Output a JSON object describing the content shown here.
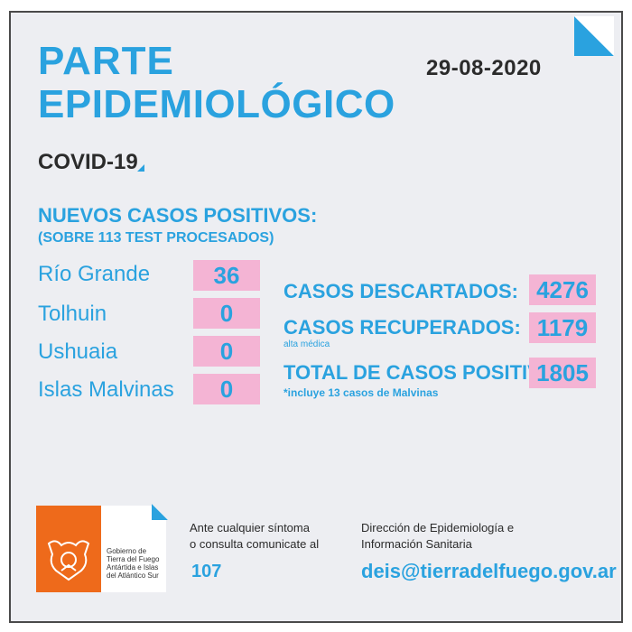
{
  "header": {
    "title_line1": "PARTE",
    "title_line2": "EPIDEMIOLÓGICO",
    "subtitle": "COVID-19",
    "date": "29-08-2020"
  },
  "new_cases": {
    "heading": "NUEVOS CASOS POSITIVOS:",
    "subheading": "(SOBRE 113 TEST PROCESADOS)",
    "cities": [
      {
        "name": "Río Grande",
        "value": "36"
      },
      {
        "name": "Tolhuin",
        "value": "0"
      },
      {
        "name": "Ushuaia",
        "value": "0"
      },
      {
        "name": "Islas Malvinas",
        "value": "0"
      }
    ]
  },
  "totals": {
    "discarded_label": "CASOS DESCARTADOS:",
    "discarded_value": "4276",
    "recovered_label": "CASOS RECUPERADOS:",
    "recovered_note": "alta médica",
    "recovered_value": "1179",
    "positive_label": "TOTAL DE CASOS POSITIVOS",
    "positive_note": "*incluye 13 casos de Malvinas",
    "positive_value": "1805"
  },
  "footer": {
    "logo_text_1": "Gobierno de",
    "logo_text_2": "Tierra del Fuego",
    "logo_text_3": "Antártida e Islas",
    "logo_text_4": "del Atlántico Sur",
    "contact_line1": "Ante cualquier síntoma",
    "contact_line2": "o consulta comunicate al",
    "phone": "107",
    "dept_line1": "Dirección de Epidemiología e",
    "dept_line2": "Información Sanitaria",
    "email": "deis@tierradelfuego.gov.ar"
  },
  "colors": {
    "accent": "#2aa2df",
    "highlight": "#f4b4d4",
    "logo_orange": "#ee6a1b",
    "background": "#edeef2"
  }
}
